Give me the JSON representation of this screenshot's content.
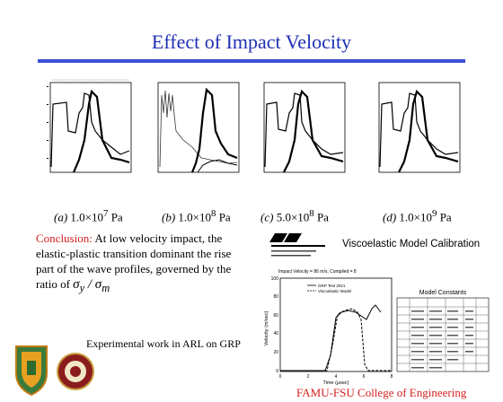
{
  "title": "Effect of Impact Velocity",
  "panels": [
    {
      "label": "(a)",
      "value": "1.0×10",
      "exp": "7",
      "unit": "Pa"
    },
    {
      "label": "(b)",
      "value": "1.0×10",
      "exp": "8",
      "unit": "Pa"
    },
    {
      "label": "(c)",
      "value": "5.0×10",
      "exp": "8",
      "unit": "Pa"
    },
    {
      "label": "(d)",
      "value": "1.0×10",
      "exp": "9",
      "unit": "Pa"
    }
  ],
  "conclusion": {
    "heading": "Conclusion:",
    "body": "At low velocity impact, the elastic-plastic transition dominant the rise part of the wave profiles, governed by the ratio of"
  },
  "calibration_title": "Viscoelastic Model Calibration",
  "plot": {
    "title": "Impact Velocity = 86 m/s, Compiled = 8",
    "legend": [
      "GRP Test 2021",
      "Viscoelastic Model"
    ],
    "xlabel": "Time (μsec)",
    "ylabel": "Velocity (m/sec)",
    "xticks": [
      "0",
      "2",
      "4",
      "6",
      "8"
    ],
    "yticks": [
      "0",
      "20",
      "40",
      "60",
      "80",
      "100"
    ]
  },
  "constants_title": "Model Constants",
  "experimental_note": "Experimental work in ARL on GRP",
  "footer": "FAMU-FSU College of Engineering",
  "colors": {
    "title": "#1f2fb3",
    "accent": "#d42020",
    "rule": "#3a4fd6"
  }
}
